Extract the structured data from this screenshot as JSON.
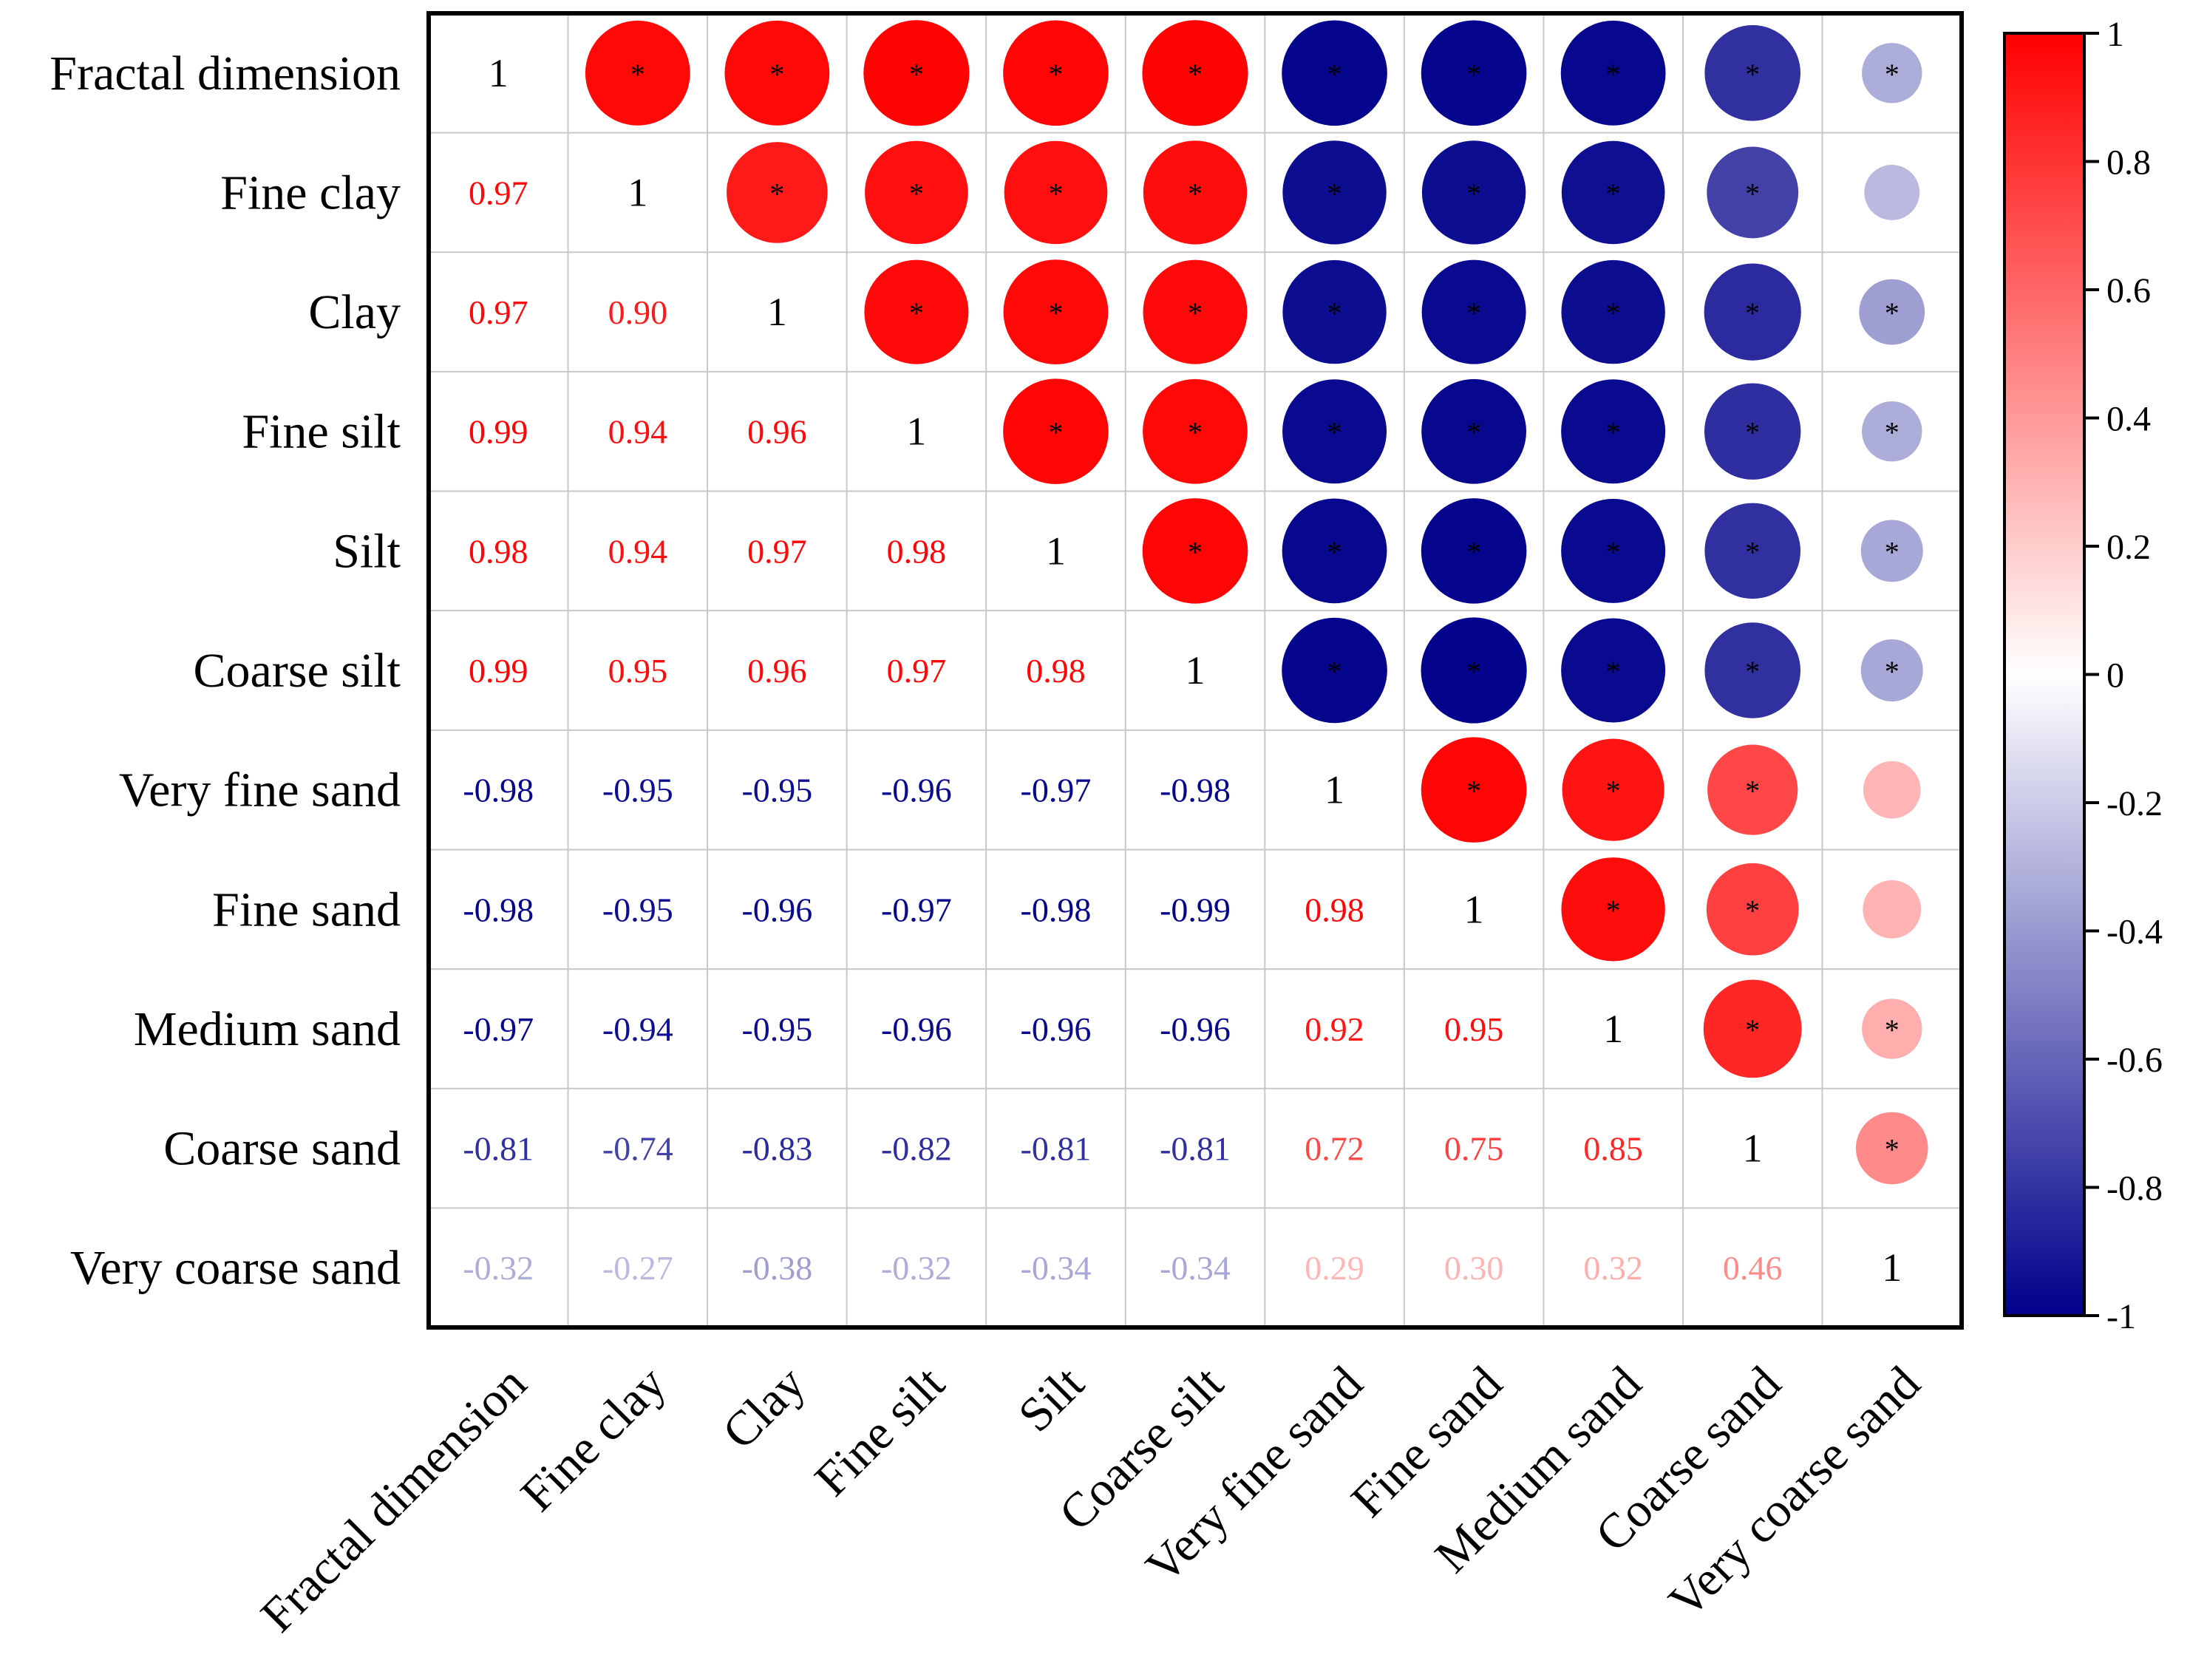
{
  "chart_data": {
    "type": "heatmap",
    "subtype": "correlation-matrix",
    "title": "",
    "variables": [
      "Fractal dimension",
      "Fine clay",
      "Clay",
      "Fine silt",
      "Silt",
      "Coarse silt",
      "Very fine sand",
      "Fine sand",
      "Medium sand",
      "Coarse sand",
      "Very coarse sand"
    ],
    "matrix": [
      [
        1,
        0.97,
        0.97,
        0.99,
        0.98,
        0.99,
        -0.98,
        -0.98,
        -0.97,
        -0.81,
        -0.32
      ],
      [
        0.97,
        1,
        0.9,
        0.94,
        0.94,
        0.95,
        -0.95,
        -0.95,
        -0.94,
        -0.74,
        -0.27
      ],
      [
        0.97,
        0.9,
        1,
        0.96,
        0.97,
        0.96,
        -0.95,
        -0.96,
        -0.95,
        -0.83,
        -0.38
      ],
      [
        0.99,
        0.94,
        0.96,
        1,
        0.98,
        0.97,
        -0.96,
        -0.97,
        -0.96,
        -0.82,
        -0.32
      ],
      [
        0.98,
        0.94,
        0.97,
        0.98,
        1,
        0.98,
        -0.97,
        -0.98,
        -0.96,
        -0.81,
        -0.34
      ],
      [
        0.99,
        0.95,
        0.96,
        0.97,
        0.98,
        1,
        -0.98,
        -0.99,
        -0.96,
        -0.81,
        -0.34
      ],
      [
        -0.98,
        -0.95,
        -0.95,
        -0.96,
        -0.97,
        -0.98,
        1,
        0.98,
        0.92,
        0.72,
        0.29
      ],
      [
        -0.98,
        -0.95,
        -0.96,
        -0.97,
        -0.98,
        -0.99,
        0.98,
        1,
        0.95,
        0.75,
        0.3
      ],
      [
        -0.97,
        -0.94,
        -0.95,
        -0.96,
        -0.96,
        -0.96,
        0.92,
        0.95,
        1,
        0.85,
        0.32
      ],
      [
        -0.81,
        -0.74,
        -0.83,
        -0.82,
        -0.81,
        -0.81,
        0.72,
        0.75,
        0.85,
        1,
        0.46
      ],
      [
        -0.32,
        -0.27,
        -0.38,
        -0.32,
        -0.34,
        -0.34,
        0.29,
        0.3,
        0.32,
        0.46,
        1
      ]
    ],
    "significance_marker": "*",
    "not_significant_pairs": [
      [
        1,
        10
      ],
      [
        6,
        10
      ],
      [
        7,
        10
      ]
    ],
    "lower_triangle": "numbers",
    "upper_triangle": "circles",
    "diagonal_label": "1",
    "colorbar": {
      "min": -1,
      "max": 1,
      "ticks": [
        "1",
        "0.8",
        "0.6",
        "0.4",
        "0.2",
        "0",
        "-0.2",
        "-0.4",
        "-0.6",
        "-0.8",
        "-1"
      ],
      "colors": {
        "negative": "#00008b",
        "zero": "#ffffff",
        "positive": "#ff0000"
      }
    },
    "grid": true,
    "legend": "right"
  }
}
